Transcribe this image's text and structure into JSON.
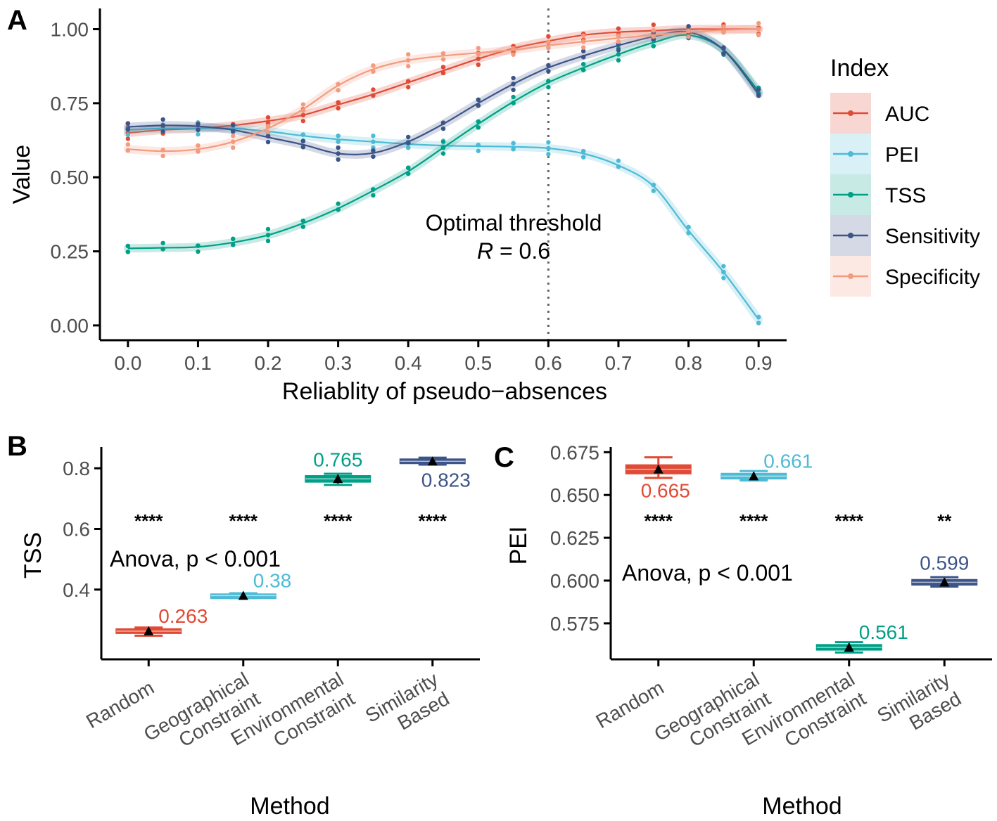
{
  "colors": {
    "AUC": "#e04b35",
    "PEI": "#4dbbd5",
    "TSS": "#00a087",
    "Sensitivity": "#3c5488",
    "Specificity": "#f39b7f",
    "axis": "#000000",
    "tick_label": "#4d4d4d"
  },
  "chart_data": [
    {
      "panel": "A",
      "type": "line",
      "xlabel": "Reliablity of pseudo−absences",
      "ylabel": "Value",
      "xlim": [
        -0.04,
        0.94
      ],
      "ylim": [
        -0.05,
        1.07
      ],
      "x_ticks": [
        0.0,
        0.1,
        0.2,
        0.3,
        0.4,
        0.5,
        0.6,
        0.7,
        0.8,
        0.9
      ],
      "x_tick_labels": [
        "0.0",
        "0.1",
        "0.2",
        "0.3",
        "0.4",
        "0.5",
        "0.6",
        "0.7",
        "0.8",
        "0.9"
      ],
      "y_ticks": [
        0.0,
        0.25,
        0.5,
        0.75,
        1.0
      ],
      "y_tick_labels": [
        "0.00",
        "0.25",
        "0.50",
        "0.75",
        "1.00"
      ],
      "x": [
        0.0,
        0.05,
        0.1,
        0.15,
        0.2,
        0.25,
        0.3,
        0.35,
        0.4,
        0.45,
        0.5,
        0.55,
        0.6,
        0.65,
        0.7,
        0.75,
        0.8,
        0.85,
        0.9
      ],
      "series": [
        {
          "name": "AUC",
          "values": [
            0.65,
            0.66,
            0.665,
            0.675,
            0.69,
            0.71,
            0.745,
            0.78,
            0.82,
            0.86,
            0.9,
            0.935,
            0.96,
            0.98,
            0.99,
            0.995,
            1.0,
            1.0,
            1.0
          ]
        },
        {
          "name": "PEI",
          "values": [
            0.66,
            0.665,
            0.665,
            0.665,
            0.655,
            0.64,
            0.628,
            0.62,
            0.612,
            0.607,
            0.605,
            0.603,
            0.598,
            0.58,
            0.54,
            0.47,
            0.32,
            0.18,
            0.02
          ]
        },
        {
          "name": "TSS",
          "values": [
            0.26,
            0.262,
            0.265,
            0.28,
            0.305,
            0.345,
            0.395,
            0.455,
            0.52,
            0.6,
            0.68,
            0.755,
            0.82,
            0.87,
            0.915,
            0.955,
            0.98,
            0.93,
            0.79
          ]
        },
        {
          "name": "Sensitivity",
          "values": [
            0.67,
            0.675,
            0.672,
            0.66,
            0.635,
            0.61,
            0.58,
            0.582,
            0.62,
            0.68,
            0.75,
            0.815,
            0.87,
            0.91,
            0.945,
            0.975,
            0.99,
            0.93,
            0.78
          ]
        },
        {
          "name": "Specificity",
          "values": [
            0.595,
            0.588,
            0.595,
            0.62,
            0.665,
            0.73,
            0.81,
            0.865,
            0.895,
            0.91,
            0.92,
            0.93,
            0.945,
            0.958,
            0.97,
            0.98,
            0.99,
            0.997,
            1.0
          ]
        }
      ],
      "vline": {
        "x": 0.6
      },
      "annotation": {
        "line1": "Optimal threshold",
        "line2_italic": "R",
        "line2_rest": " = 0.6"
      },
      "legend": {
        "title": "Index",
        "position": "right",
        "entries": [
          "AUC",
          "PEI",
          "TSS",
          "Sensitivity",
          "Specificity"
        ]
      }
    },
    {
      "panel": "B",
      "type": "box",
      "xlabel": "Method",
      "ylabel": "TSS",
      "ylim": [
        0.17,
        0.87
      ],
      "y_ticks": [
        0.4,
        0.6,
        0.8
      ],
      "y_tick_labels": [
        "0.4",
        "0.6",
        "0.8"
      ],
      "categories": [
        {
          "lines": [
            "Random"
          ],
          "mean": 0.263,
          "label": "0.263",
          "q1": 0.256,
          "q3": 0.27,
          "lo": 0.248,
          "hi": 0.275,
          "sig": "****",
          "series": "AUC",
          "label_side": "above-right"
        },
        {
          "lines": [
            "Geographical",
            "Constraint"
          ],
          "mean": 0.38,
          "label": "0.38",
          "q1": 0.376,
          "q3": 0.385,
          "lo": 0.372,
          "hi": 0.388,
          "sig": "****",
          "series": "PEI",
          "label_side": "above-right"
        },
        {
          "lines": [
            "Environmental",
            "Constraint"
          ],
          "mean": 0.765,
          "label": "0.765",
          "q1": 0.755,
          "q3": 0.775,
          "lo": 0.745,
          "hi": 0.782,
          "sig": "****",
          "series": "TSS",
          "label_side": "above"
        },
        {
          "lines": [
            "Similarity",
            "Based"
          ],
          "mean": 0.823,
          "label": "0.823",
          "q1": 0.818,
          "q3": 0.83,
          "lo": 0.812,
          "hi": 0.835,
          "sig": "****",
          "series": "Sensitivity",
          "label_side": "below-right"
        }
      ],
      "anova": "Anova, p < 0.001"
    },
    {
      "panel": "C",
      "type": "box",
      "xlabel": "Method",
      "ylabel": "PEI",
      "ylim": [
        0.554,
        0.678
      ],
      "y_ticks": [
        0.575,
        0.6,
        0.625,
        0.65,
        0.675
      ],
      "y_tick_labels": [
        "0.575",
        "0.600",
        "0.625",
        "0.650",
        "0.675"
      ],
      "categories": [
        {
          "lines": [
            "Random"
          ],
          "mean": 0.665,
          "label": "0.665",
          "q1": 0.6625,
          "q3": 0.6675,
          "lo": 0.66,
          "hi": 0.672,
          "sig": "****",
          "series": "AUC",
          "label_side": "below"
        },
        {
          "lines": [
            "Geographical",
            "Constraint"
          ],
          "mean": 0.661,
          "label": "0.661",
          "q1": 0.6595,
          "q3": 0.6625,
          "lo": 0.6585,
          "hi": 0.664,
          "sig": "****",
          "series": "PEI",
          "label_side": "above-right"
        },
        {
          "lines": [
            "Environmental",
            "Constraint"
          ],
          "mean": 0.561,
          "label": "0.561",
          "q1": 0.5595,
          "q3": 0.5625,
          "lo": 0.558,
          "hi": 0.564,
          "sig": "****",
          "series": "TSS",
          "label_side": "above-right"
        },
        {
          "lines": [
            "Similarity",
            "Based"
          ],
          "mean": 0.599,
          "label": "0.599",
          "q1": 0.5975,
          "q3": 0.6005,
          "lo": 0.5965,
          "hi": 0.602,
          "sig": "**",
          "series": "Sensitivity",
          "label_side": "above"
        }
      ],
      "anova": "Anova, p < 0.001"
    }
  ]
}
